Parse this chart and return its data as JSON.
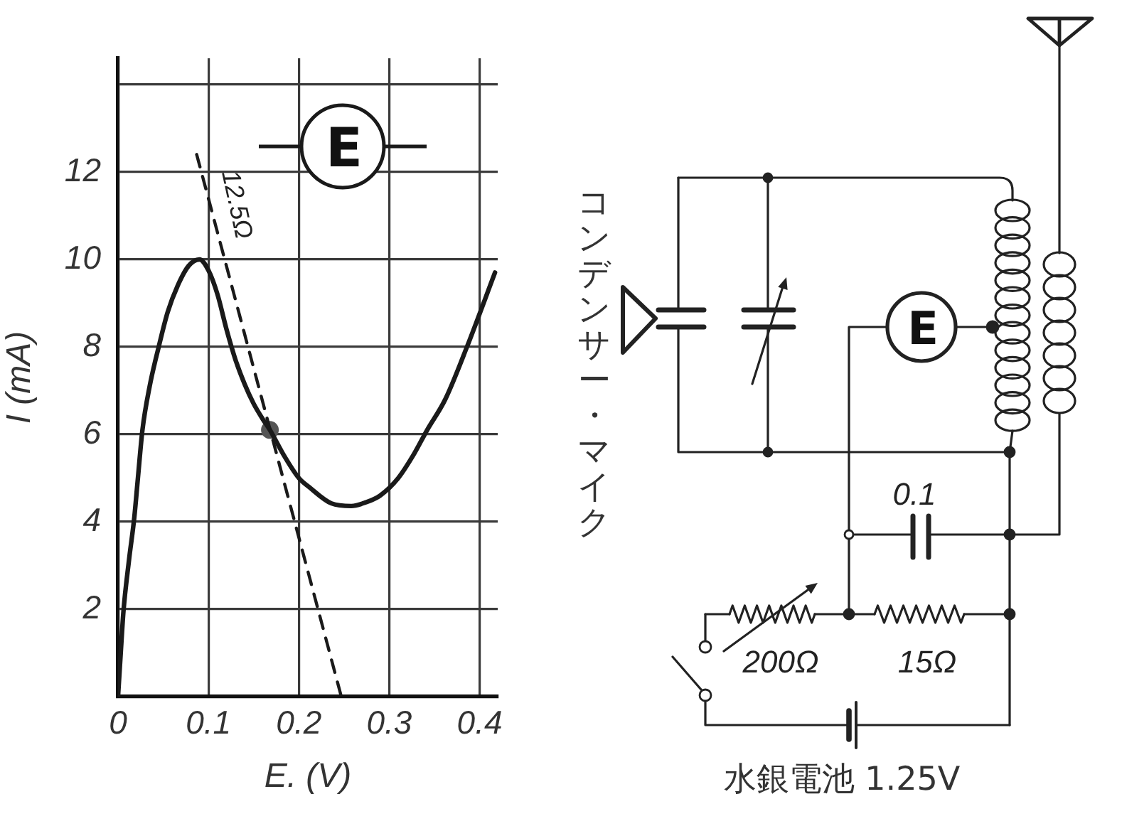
{
  "chart_data": [
    {
      "type": "line",
      "xlabel": "E. (V)",
      "ylabel": "I (mA)",
      "xlim": [
        0,
        0.42
      ],
      "xticks": [
        0,
        0.1,
        0.2,
        0.3,
        0.4
      ],
      "ylim": [
        0,
        14.6
      ],
      "yticks": [
        2,
        4,
        6,
        8,
        10,
        12,
        {
          "value": 14,
          "label": null
        }
      ],
      "grid": true,
      "series": [
        {
          "color": "#1a1a1a",
          "x": [
            0,
            0.003,
            0.006,
            0.012,
            0.018,
            0.022,
            0.027,
            0.035,
            0.045,
            0.055,
            0.066,
            0.078,
            0.09,
            0.1,
            0.11,
            0.12,
            0.13,
            0.14,
            0.15,
            0.16,
            0.168,
            0.184,
            0.2,
            0.211,
            0.236,
            0.258,
            0.275,
            0.29,
            0.31,
            0.326,
            0.342,
            0.362,
            0.386,
            0.417
          ],
          "values": [
            0,
            1,
            1.95,
            3.1,
            4.1,
            5,
            6.1,
            7.1,
            8,
            8.8,
            9.4,
            9.85,
            10,
            9.75,
            9.2,
            8.4,
            7.7,
            7.15,
            6.7,
            6.35,
            6.1,
            5.5,
            5,
            4.8,
            4.42,
            4.36,
            4.45,
            4.6,
            5,
            5.5,
            6.1,
            6.8,
            8,
            9.7
          ]
        },
        {
          "color": "#1a1a1a",
          "line_style": "dashed",
          "x": [
            0.087,
            0.247
          ],
          "values": [
            12.4,
            0
          ]
        },
        {
          "type": "scatter",
          "color": "#555555",
          "marker": "circle",
          "x": [
            0.168
          ],
          "values": [
            6.1
          ]
        }
      ],
      "annotations": [
        "12.5Ω",
        "E"
      ]
    },
    {
      "type": "other",
      "annotations": [
        "コンデンサー・マイク",
        "E",
        "0.1",
        "200Ω",
        "15Ω",
        "水銀電池 1.25V"
      ]
    }
  ]
}
